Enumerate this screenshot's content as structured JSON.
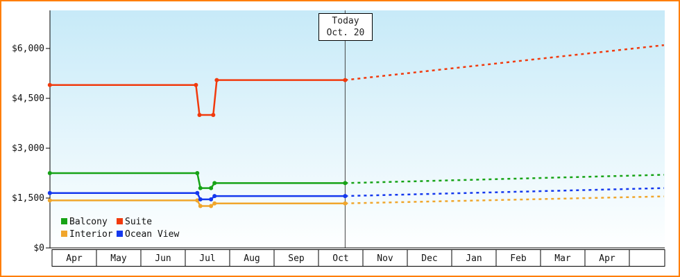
{
  "chart_data": {
    "type": "line",
    "title": "",
    "x_axis": {
      "categories": [
        "Apr",
        "May",
        "Jun",
        "Jul",
        "Aug",
        "Sep",
        "Oct",
        "Nov",
        "Dec",
        "Jan",
        "Feb",
        "Mar",
        "Apr"
      ]
    },
    "y_axis": {
      "tick_values": [
        0,
        1500,
        3000,
        4500,
        6000
      ],
      "tick_labels": [
        "$0",
        "$1,500",
        "$3,000",
        "$4,500",
        "$6,000"
      ],
      "ylim": [
        0,
        7150
      ]
    },
    "today": {
      "line1": "Today",
      "line2": "Oct. 20",
      "month_offset": 6.6
    },
    "series": [
      {
        "name": "Balcony",
        "color": "#16A316",
        "history": [
          [
            -0.05,
            2250
          ],
          [
            3.27,
            2250
          ],
          [
            3.34,
            1800
          ],
          [
            3.58,
            1800
          ],
          [
            3.66,
            1950
          ],
          [
            6.6,
            1950
          ]
        ],
        "forecast": [
          [
            6.6,
            1950
          ],
          [
            13.78,
            2200
          ]
        ]
      },
      {
        "name": "Suite",
        "color": "#F13A0D",
        "history": [
          [
            -0.05,
            4900
          ],
          [
            3.24,
            4900
          ],
          [
            3.32,
            4000
          ],
          [
            3.63,
            4000
          ],
          [
            3.71,
            5050
          ],
          [
            6.6,
            5050
          ]
        ],
        "forecast": [
          [
            6.6,
            5050
          ],
          [
            13.78,
            6100
          ]
        ]
      },
      {
        "name": "Interior",
        "color": "#F0A62C",
        "history": [
          [
            -0.05,
            1430
          ],
          [
            3.27,
            1430
          ],
          [
            3.34,
            1260
          ],
          [
            3.58,
            1260
          ],
          [
            3.66,
            1340
          ],
          [
            6.6,
            1340
          ]
        ],
        "forecast": [
          [
            6.6,
            1340
          ],
          [
            13.78,
            1550
          ]
        ]
      },
      {
        "name": "Ocean View",
        "color": "#1438EE",
        "history": [
          [
            -0.05,
            1650
          ],
          [
            3.27,
            1650
          ],
          [
            3.34,
            1460
          ],
          [
            3.58,
            1460
          ],
          [
            3.66,
            1560
          ],
          [
            6.6,
            1560
          ]
        ],
        "forecast": [
          [
            6.6,
            1560
          ],
          [
            13.78,
            1800
          ]
        ]
      }
    ],
    "legend": {
      "position": "bottom-left-inside",
      "rows": 2,
      "columns": 2
    },
    "colors": {
      "frame_border": "#FF7E00",
      "plot_bg_top": "#C7EAF8",
      "plot_bg_bottom": "#FEFFFF",
      "axis": "#000000",
      "today_line": "#444444",
      "cell_bg": "#FFFFFF",
      "text": "#111111"
    }
  }
}
